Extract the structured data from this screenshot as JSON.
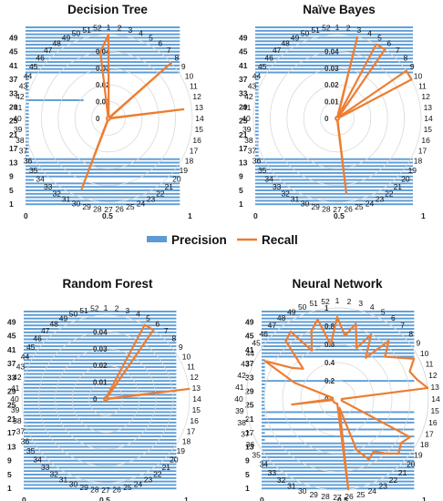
{
  "legend": {
    "precision_label": "Precision",
    "recall_label": "Recall",
    "precision_color": "#5B9BD5",
    "recall_color": "#ED7D31"
  },
  "chart_data": [
    {
      "type": "radar_with_bars",
      "title": "Decision Tree",
      "spokes": 52,
      "precision_axis": {
        "range": [
          0,
          1
        ],
        "tick_labels": [
          "0",
          "0.5",
          "1"
        ]
      },
      "recall_axis": {
        "range": [
          0,
          0.05
        ],
        "ticks": [
          "0",
          "0.01",
          "0.02",
          "0.03",
          "0.04"
        ]
      },
      "y_labels": [
        "1",
        "5",
        "9",
        "13",
        "17",
        "21",
        "25",
        "29",
        "33",
        "37",
        "41",
        "45",
        "49"
      ],
      "recall": [
        0.05,
        0.001,
        0.001,
        0.001,
        0.001,
        0.001,
        0.001,
        0.05,
        0.001,
        0.001,
        0.001,
        0.001,
        0.045,
        0.001,
        0.001,
        0.001,
        0.001,
        0.001,
        0.001,
        0.001,
        0.001,
        0.001,
        0.001,
        0.001,
        0.001,
        0.001,
        0.001,
        0.001,
        0.001,
        0.045,
        0.001,
        0.001,
        0.001,
        0.001,
        0.001,
        0.001,
        0.001,
        0.001,
        0.001,
        0.001,
        0.001,
        0.001,
        0.001,
        0.001,
        0.001,
        0.001,
        0.001,
        0.001,
        0.001,
        0.001,
        0.001,
        0.04
      ],
      "precision": [
        0.93,
        0.93,
        0.93,
        0.93,
        0.93,
        0.93,
        0.93,
        0.05,
        0.93,
        0.93,
        0.93,
        0.93,
        0.93,
        0.93,
        0.02,
        0.02,
        0.02,
        0.02,
        0.02,
        0.02,
        0.02,
        0.02,
        0.02,
        0.02,
        0.02,
        0.02,
        0.02,
        0.02,
        0.02,
        0.02,
        0.35,
        0.02,
        0.02,
        0.02,
        0.02,
        0.02,
        0.02,
        0.02,
        0.93,
        0.93,
        0.93,
        0.93,
        0.93,
        0.93,
        0.93,
        0.93,
        0.93,
        0.93,
        0.93,
        0.93,
        0.93,
        0.93
      ]
    },
    {
      "type": "radar_with_bars",
      "title": "Naïve Bayes",
      "spokes": 52,
      "precision_axis": {
        "range": [
          0,
          1
        ],
        "tick_labels": [
          "0",
          "0.5",
          "1"
        ]
      },
      "recall_axis": {
        "range": [
          0,
          0.05
        ],
        "ticks": [
          "0",
          "0.01",
          "0.02",
          "0.03",
          "0.04"
        ]
      },
      "y_labels": [
        "1",
        "5",
        "9",
        "13",
        "17",
        "21",
        "25",
        "29",
        "33",
        "37",
        "41",
        "45",
        "49"
      ],
      "recall": [
        0.001,
        0.001,
        0.05,
        0.001,
        0.05,
        0.05,
        0.001,
        0.001,
        0.05,
        0.05,
        0.001,
        0.001,
        0.001,
        0.001,
        0.001,
        0.001,
        0.001,
        0.001,
        0.001,
        0.001,
        0.001,
        0.001,
        0.001,
        0.001,
        0.001,
        0.045,
        0.001,
        0.001,
        0.001,
        0.001,
        0.001,
        0.001,
        0.001,
        0.001,
        0.001,
        0.001,
        0.001,
        0.001,
        0.001,
        0.001,
        0.001,
        0.001,
        0.001,
        0.001,
        0.001,
        0.001,
        0.001,
        0.001,
        0.001,
        0.001,
        0.001,
        0.001
      ],
      "precision": [
        0.93,
        0.93,
        0.93,
        0.93,
        0.93,
        0.93,
        0.93,
        0.93,
        0.93,
        0.93,
        0.93,
        0.93,
        0.93,
        0.93,
        0.02,
        0.02,
        0.02,
        0.02,
        0.02,
        0.02,
        0.02,
        0.02,
        0.02,
        0.02,
        0.02,
        0.02,
        0.02,
        0.02,
        0.02,
        0.02,
        0.02,
        0.02,
        0.02,
        0.02,
        0.02,
        0.02,
        0.02,
        0.02,
        0.93,
        0.93,
        0.93,
        0.93,
        0.93,
        0.93,
        0.93,
        0.93,
        0.93,
        0.93,
        0.93,
        0.93,
        0.93,
        0.93
      ]
    },
    {
      "type": "radar_with_bars",
      "title": "Random Forest",
      "spokes": 52,
      "precision_axis": {
        "range": [
          0,
          1
        ],
        "tick_labels": [
          "0",
          "0.5",
          "1"
        ]
      },
      "recall_axis": {
        "range": [
          0,
          0.05
        ],
        "ticks": [
          "0",
          "0.01",
          "0.02",
          "0.03",
          "0.04"
        ]
      },
      "y_labels": [
        "1",
        "5",
        "9",
        "13",
        "17",
        "21",
        "25",
        "29",
        "33",
        "37",
        "41",
        "45",
        "49"
      ],
      "recall": [
        0.001,
        0.001,
        0.001,
        0.001,
        0.05,
        0.05,
        0.001,
        0.001,
        0.001,
        0.001,
        0.001,
        0.001,
        0.05,
        0.001,
        0.001,
        0.001,
        0.001,
        0.001,
        0.001,
        0.001,
        0.001,
        0.001,
        0.001,
        0.001,
        0.001,
        0.001,
        0.001,
        0.001,
        0.001,
        0.001,
        0.001,
        0.001,
        0.001,
        0.001,
        0.001,
        0.001,
        0.001,
        0.001,
        0.001,
        0.001,
        0.001,
        0.001,
        0.001,
        0.001,
        0.001,
        0.001,
        0.001,
        0.001,
        0.001,
        0.001,
        0.001,
        0.001
      ],
      "precision": [
        0.93,
        0.93,
        0.93,
        0.93,
        0.93,
        0.93,
        0.93,
        0.93,
        0.93,
        0.93,
        0.93,
        0.93,
        0.93,
        0.93,
        0.93,
        0.93,
        0.93,
        0.93,
        0.93,
        0.93,
        0.93,
        0.93,
        0.93,
        0.93,
        0.93,
        0.93,
        0.93,
        0.93,
        0.93,
        0.93,
        0.93,
        0.93,
        0.93,
        0.93,
        0.93,
        0.93,
        0.93,
        0.93,
        0.93,
        0.93,
        0.93,
        0.93,
        0.93,
        0.93,
        0.93,
        0.93,
        0.93,
        0.93,
        0.93,
        0.93,
        0.93,
        0.93
      ]
    },
    {
      "type": "radar_with_bars",
      "title": "Neural Network",
      "spokes": 52,
      "precision_axis": {
        "range": [
          0,
          1
        ],
        "tick_labels": [
          "0",
          "0.5",
          "1"
        ]
      },
      "recall_axis": {
        "range": [
          0,
          1
        ],
        "ticks": [
          "0",
          "0.2",
          "0.4",
          "0.6",
          "0.8",
          "1"
        ]
      },
      "y_labels": [
        "1",
        "5",
        "9",
        "13",
        "17",
        "21",
        "25",
        "29",
        "33",
        "37",
        "41",
        "45",
        "49"
      ],
      "recall": [
        0.9,
        0.7,
        0.85,
        0.6,
        0.8,
        0.55,
        0.85,
        0.7,
        0.8,
        0.95,
        0.85,
        0.9,
        1.0,
        0.05,
        0.05,
        0.05,
        0.05,
        0.9,
        0.85,
        0.9,
        0.8,
        0.7,
        0.75,
        0.6,
        0.1,
        1.0,
        0.05,
        0.05,
        0.05,
        0.05,
        0.05,
        0.05,
        0.05,
        0.05,
        0.05,
        0.05,
        0.05,
        0.05,
        0.5,
        0.05,
        0.05,
        0.05,
        0.5,
        0.9,
        0.6,
        0.5,
        0.85,
        0.9,
        0.6,
        0.8,
        0.9,
        0.6
      ],
      "precision": [
        0.93,
        0.93,
        0.93,
        0.93,
        0.93,
        0.93,
        0.93,
        0.93,
        0.93,
        0.93,
        0.93,
        0.93,
        0.93,
        0.93,
        0.02,
        0.93,
        0.02,
        0.93,
        0.02,
        0.93,
        0.93,
        0.02,
        0.93,
        0.02,
        0.02,
        0.02,
        0.02,
        0.02,
        0.02,
        0.02,
        0.02,
        0.93,
        0.02,
        0.02,
        0.02,
        0.02,
        0.02,
        0.02,
        0.93,
        0.93,
        0.93,
        0.93,
        0.93,
        0.93,
        0.93,
        0.93,
        0.93,
        0.93,
        0.93,
        0.93,
        0.93,
        0.93
      ]
    }
  ]
}
